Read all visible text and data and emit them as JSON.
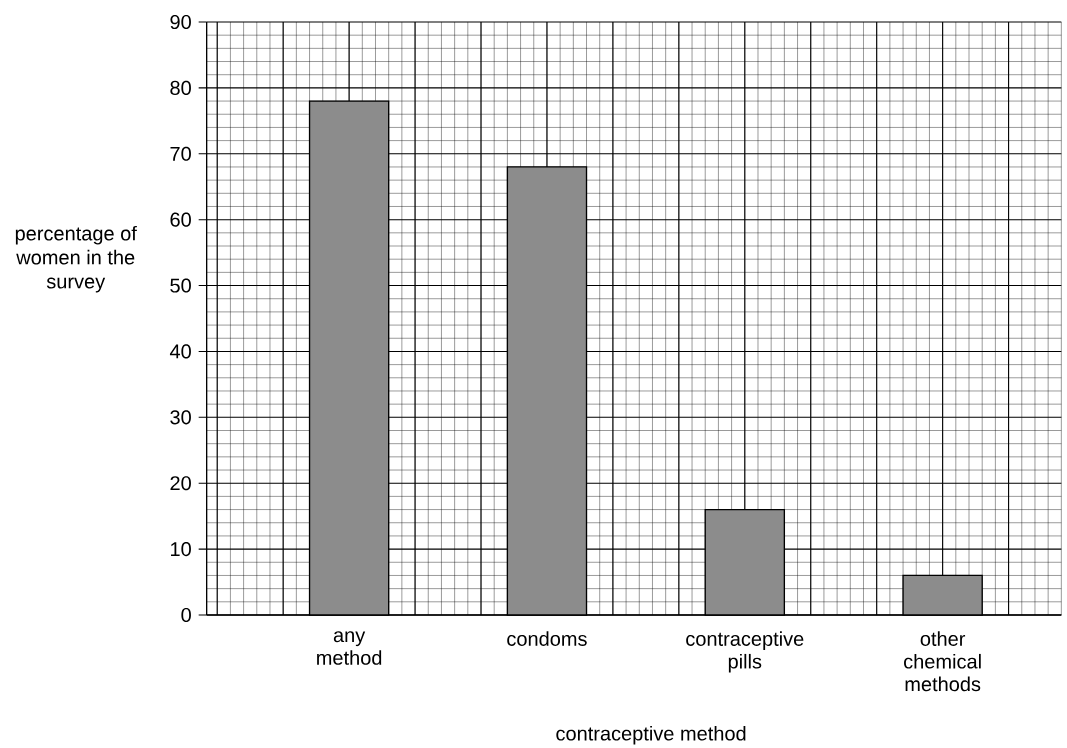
{
  "chart_data": {
    "type": "bar",
    "xlabel": "contraceptive method",
    "ylabel": "percentage of women in the survey",
    "categories": [
      "any method",
      "condoms",
      "contraceptive pills",
      "other chemical methods"
    ],
    "values": [
      78,
      68,
      16,
      6
    ],
    "color": "#8c8c8c",
    "ylim": [
      0,
      90
    ],
    "yticks": [
      0,
      10,
      20,
      30,
      40,
      50,
      60,
      70,
      80,
      90
    ],
    "grid": true
  }
}
